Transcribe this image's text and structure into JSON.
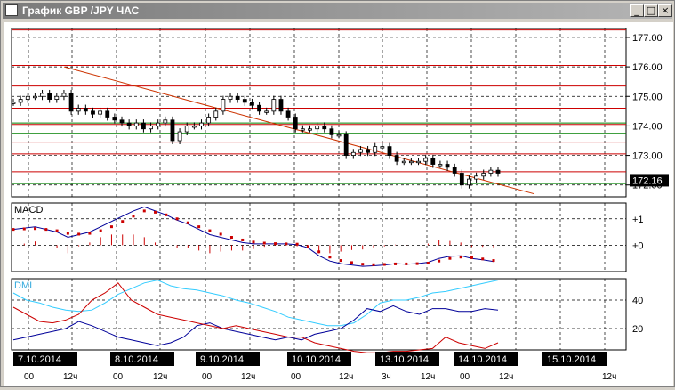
{
  "window": {
    "title": "График GBP /JPY  ЧАС",
    "minimize_label": "_",
    "maximize_label": "□",
    "close_label": "×"
  },
  "colors": {
    "background": "#ffffff",
    "grid": "#000000",
    "price_level": "#cc0000",
    "support_level": "#008000",
    "trendline": "#cc3300",
    "candles": "#000000",
    "macd_line": "#000099",
    "macd_signal": "#cc0000",
    "macd_histogram": "#cc0000",
    "dmi_adx": "#33ccff",
    "dmi_plus": "#000099",
    "dmi_minus": "#cc0000",
    "current_price_box": "#000000"
  },
  "chart_data": [
    {
      "type": "candlestick",
      "panel": "price",
      "y_ticks": [
        "177.00",
        "176.00",
        "175.00",
        "174.00",
        "173.00",
        "172.00"
      ],
      "ylim": [
        171.6,
        177.3
      ],
      "current_price": "172.16",
      "horizontal_levels_red": [
        177.25,
        176.05,
        175.35,
        174.6,
        174.05,
        173.45,
        173.05,
        172.45
      ],
      "horizontal_levels_green": [
        174.1,
        173.75,
        172.05
      ],
      "trendline": {
        "from": [
          8.3,
          176.0
        ],
        "to": [
          85,
          171.7
        ]
      },
      "x_labels": [
        "7.10.2014",
        "8.10.2014",
        "9.10.2014",
        "10.10.2014",
        "13.10.2014",
        "14.10.2014",
        "15.10.2014"
      ],
      "hour_labels": [
        "00",
        "12ч",
        "00",
        "12ч",
        "00",
        "12ч",
        "00",
        "12ч",
        "3ч",
        "12ч",
        "00",
        "12ч",
        "12ч"
      ],
      "close": [
        174.8,
        174.9,
        175.0,
        175.0,
        175.1,
        174.9,
        175.0,
        175.1,
        174.5,
        174.6,
        174.5,
        174.4,
        174.5,
        174.3,
        174.2,
        174.1,
        174.0,
        174.1,
        173.9,
        174.0,
        174.1,
        174.2,
        173.5,
        173.8,
        174.0,
        174.0,
        174.1,
        174.3,
        174.5,
        174.9,
        175.0,
        174.9,
        174.8,
        174.7,
        174.5,
        174.5,
        174.9,
        174.5,
        174.3,
        173.9,
        173.9,
        173.9,
        174.0,
        173.9,
        173.7,
        173.7,
        173.0,
        173.1,
        173.2,
        173.1,
        173.3,
        173.3,
        173.0,
        172.8,
        172.8,
        172.8,
        172.8,
        172.9,
        172.7,
        172.7,
        172.6,
        172.4,
        172.0,
        172.2,
        172.3,
        172.4,
        172.5,
        172.4
      ],
      "macd": [
        0.6,
        0.65,
        0.7,
        0.6,
        0.5,
        0.3,
        0.4,
        0.5,
        0.7,
        0.9,
        1.1,
        1.3,
        1.45,
        1.3,
        1.15,
        0.95,
        0.8,
        0.6,
        0.4,
        0.3,
        0.2,
        0.1,
        0.05,
        0.05,
        0.05,
        0.05,
        0.02,
        -0.1,
        -0.4,
        -0.6,
        -0.7,
        -0.75,
        -0.8,
        -0.78,
        -0.75,
        -0.7,
        -0.72,
        -0.7,
        -0.65,
        -0.5,
        -0.42,
        -0.4,
        -0.5,
        -0.55,
        -0.62
      ],
      "macd_signal": [
        0.6,
        0.62,
        0.63,
        0.6,
        0.55,
        0.45,
        0.42,
        0.45,
        0.55,
        0.7,
        0.9,
        1.1,
        1.3,
        1.25,
        1.15,
        1.0,
        0.85,
        0.7,
        0.55,
        0.42,
        0.3,
        0.2,
        0.12,
        0.08,
        0.06,
        0.05,
        0.04,
        -0.05,
        -0.25,
        -0.45,
        -0.58,
        -0.66,
        -0.72,
        -0.74,
        -0.73,
        -0.71,
        -0.71,
        -0.7,
        -0.68,
        -0.6,
        -0.5,
        -0.45,
        -0.47,
        -0.52,
        -0.58
      ],
      "macd_ticks": [
        "+1",
        "+0"
      ],
      "dmi_adx": [
        45,
        40,
        38,
        35,
        33,
        32,
        33,
        38,
        44,
        48,
        52,
        54,
        50,
        48,
        47,
        45,
        43,
        40,
        38,
        35,
        32,
        28,
        26,
        24,
        22,
        22,
        24,
        30,
        38,
        40,
        40,
        42,
        45,
        46,
        48,
        50,
        52,
        54
      ],
      "dmi_plus": [
        12,
        14,
        16,
        18,
        20,
        25,
        22,
        18,
        14,
        12,
        10,
        8,
        10,
        14,
        22,
        24,
        20,
        18,
        16,
        14,
        12,
        14,
        12,
        16,
        18,
        20,
        26,
        34,
        32,
        36,
        32,
        30,
        34,
        34,
        32,
        32,
        34,
        33
      ],
      "dmi_minus": [
        35,
        30,
        25,
        24,
        26,
        30,
        40,
        45,
        52,
        40,
        35,
        30,
        28,
        26,
        24,
        22,
        20,
        22,
        20,
        18,
        16,
        14,
        14,
        10,
        8,
        6,
        4,
        3,
        3,
        4,
        4,
        5,
        6,
        14,
        10,
        8,
        6,
        10
      ],
      "dmi_ticks": [
        "40",
        "20"
      ],
      "panel_labels": {
        "macd": "MACD",
        "dmi": "DMI"
      }
    }
  ]
}
